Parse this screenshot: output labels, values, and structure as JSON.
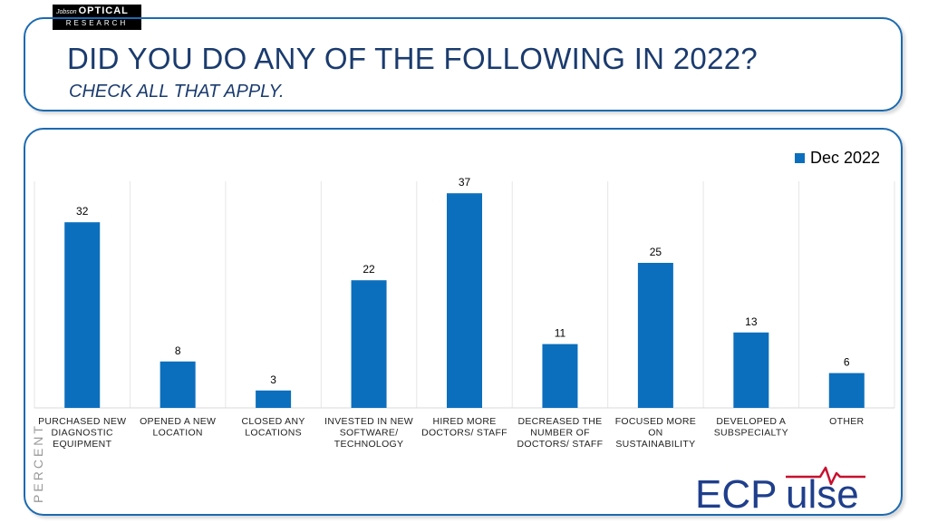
{
  "logo": {
    "top_small": "Jobson",
    "top": "OPTICAL",
    "bottom": "RESEARCH"
  },
  "header": {
    "title": "DID YOU DO ANY OF THE FOLLOWING IN 2022?",
    "subtitle": "CHECK ALL THAT APPLY."
  },
  "brand": {
    "part1": "ECP",
    "part2": "ulse"
  },
  "colors": {
    "bar": "#0b6fbd",
    "title": "#1a3b6e",
    "border": "#1c6ab0",
    "brand_blue": "#1f3f8c",
    "brand_red": "#c8102e"
  },
  "chart_data": {
    "type": "bar",
    "categories": [
      [
        "PURCHASED NEW",
        "DIAGNOSTIC",
        "EQUIPMENT"
      ],
      [
        "OPENED A NEW",
        "LOCATION"
      ],
      [
        "CLOSED ANY",
        "LOCATIONS"
      ],
      [
        "INVESTED IN NEW",
        "SOFTWARE/",
        "TECHNOLOGY"
      ],
      [
        "HIRED MORE",
        "DOCTORS/ STAFF"
      ],
      [
        "DECREASED THE",
        "NUMBER OF",
        "DOCTORS/ STAFF"
      ],
      [
        "FOCUSED MORE",
        "ON",
        "SUSTAINABILITY"
      ],
      [
        "DEVELOPED A",
        "SUBSPECIALTY"
      ],
      [
        "OTHER"
      ]
    ],
    "series": [
      {
        "name": "Dec 2022",
        "values": [
          32,
          8,
          3,
          22,
          37,
          11,
          25,
          13,
          6
        ]
      }
    ],
    "ylabel": "PERCENT",
    "ylim": [
      0,
      40
    ],
    "legend_position": "top-right",
    "grid": false
  }
}
